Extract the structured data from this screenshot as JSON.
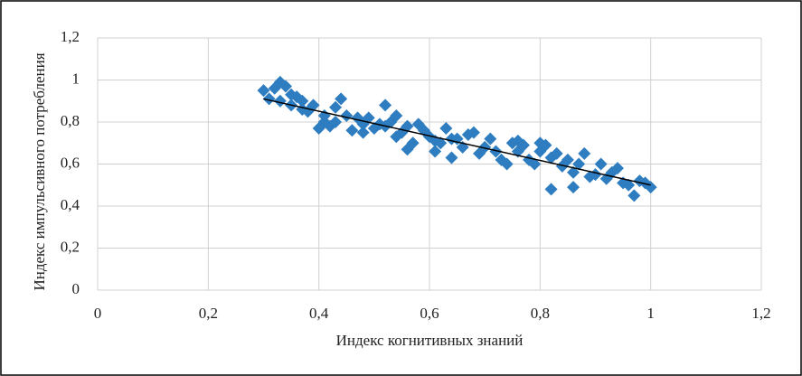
{
  "chart_data": {
    "type": "scatter",
    "x_label": "Индекс когнитивных знаний",
    "y_label": "Индекс импульсивного потребления",
    "x": [
      0.3,
      0.31,
      0.32,
      0.33,
      0.33,
      0.34,
      0.35,
      0.35,
      0.36,
      0.37,
      0.37,
      0.38,
      0.39,
      0.4,
      0.41,
      0.41,
      0.42,
      0.43,
      0.43,
      0.44,
      0.45,
      0.46,
      0.47,
      0.48,
      0.48,
      0.49,
      0.5,
      0.51,
      0.52,
      0.52,
      0.53,
      0.54,
      0.54,
      0.55,
      0.56,
      0.56,
      0.57,
      0.58,
      0.59,
      0.6,
      0.61,
      0.61,
      0.62,
      0.63,
      0.64,
      0.64,
      0.65,
      0.66,
      0.67,
      0.68,
      0.69,
      0.7,
      0.71,
      0.72,
      0.73,
      0.74,
      0.75,
      0.76,
      0.76,
      0.77,
      0.78,
      0.79,
      0.8,
      0.8,
      0.81,
      0.82,
      0.82,
      0.83,
      0.84,
      0.85,
      0.86,
      0.86,
      0.87,
      0.88,
      0.89,
      0.9,
      0.91,
      0.92,
      0.93,
      0.94,
      0.95,
      0.96,
      0.97,
      0.98,
      0.99,
      1.0
    ],
    "values": [
      0.95,
      0.91,
      0.96,
      0.99,
      0.9,
      0.97,
      0.93,
      0.88,
      0.92,
      0.86,
      0.9,
      0.85,
      0.88,
      0.77,
      0.8,
      0.83,
      0.78,
      0.87,
      0.8,
      0.91,
      0.83,
      0.76,
      0.82,
      0.79,
      0.75,
      0.82,
      0.77,
      0.79,
      0.88,
      0.78,
      0.8,
      0.73,
      0.83,
      0.75,
      0.67,
      0.78,
      0.7,
      0.79,
      0.76,
      0.73,
      0.66,
      0.71,
      0.7,
      0.77,
      0.72,
      0.63,
      0.72,
      0.68,
      0.74,
      0.75,
      0.65,
      0.68,
      0.72,
      0.66,
      0.62,
      0.6,
      0.7,
      0.71,
      0.66,
      0.69,
      0.62,
      0.6,
      0.7,
      0.66,
      0.69,
      0.48,
      0.63,
      0.65,
      0.59,
      0.62,
      0.49,
      0.56,
      0.6,
      0.65,
      0.54,
      0.55,
      0.6,
      0.53,
      0.56,
      0.58,
      0.51,
      0.5,
      0.45,
      0.52,
      0.51,
      0.49
    ],
    "color": "#2e7dc0",
    "trendline": {
      "x": [
        0.3,
        1.0
      ],
      "y": [
        0.91,
        0.5
      ],
      "color": "#000000"
    },
    "xlim": [
      0,
      1.2
    ],
    "ylim": [
      0,
      1.2
    ],
    "xticks": [
      0,
      {
        "value": 0.2,
        "label": "0,2"
      },
      {
        "value": 0.4,
        "label": "0,4"
      },
      {
        "value": 0.6,
        "label": "0,6"
      },
      {
        "value": 0.8,
        "label": "0,8"
      },
      1,
      {
        "value": 1.2,
        "label": "1,2"
      }
    ],
    "yticks": [
      0,
      {
        "value": 0.2,
        "label": "0,2"
      },
      {
        "value": 0.4,
        "label": "0,4"
      },
      {
        "value": 0.6,
        "label": "0,6"
      },
      {
        "value": 0.8,
        "label": "0,8"
      },
      1,
      {
        "value": 1.2,
        "label": "1,2"
      }
    ],
    "grid": true
  }
}
